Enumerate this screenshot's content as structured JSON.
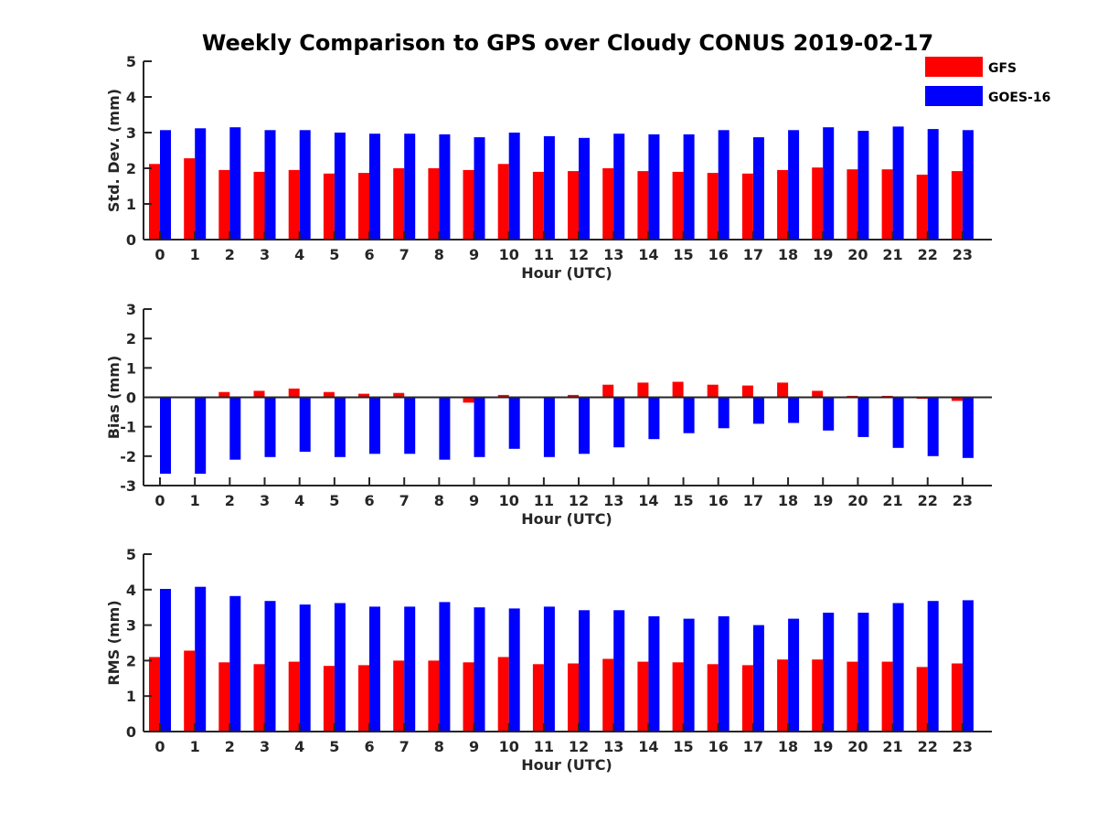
{
  "title": "Weekly Comparison to GPS over Cloudy CONUS 2019-02-17",
  "legend": {
    "placement": "top-right",
    "entries": [
      {
        "label": "GFS",
        "color": "#ff0000"
      },
      {
        "label": "GOES-16",
        "color": "#0000ff"
      }
    ]
  },
  "chart_data": [
    {
      "type": "bar",
      "xlabel": "Hour (UTC)",
      "ylabel": "Std. Dev. (mm)",
      "ylim": [
        0,
        5
      ],
      "yticks": [
        0,
        1,
        2,
        3,
        4,
        5
      ],
      "categories": [
        "0",
        "1",
        "2",
        "3",
        "4",
        "5",
        "6",
        "7",
        "8",
        "9",
        "10",
        "11",
        "12",
        "13",
        "14",
        "15",
        "16",
        "17",
        "18",
        "19",
        "20",
        "21",
        "22",
        "23"
      ],
      "series": [
        {
          "name": "GFS",
          "color": "#ff0000",
          "values": [
            2.12,
            2.28,
            1.95,
            1.9,
            1.95,
            1.85,
            1.87,
            2.0,
            2.0,
            1.95,
            2.12,
            1.9,
            1.92,
            2.0,
            1.92,
            1.9,
            1.87,
            1.85,
            1.95,
            2.02,
            1.97,
            1.97,
            1.82,
            1.92
          ]
        },
        {
          "name": "GOES-16",
          "color": "#0000ff",
          "values": [
            3.07,
            3.12,
            3.15,
            3.07,
            3.07,
            3.0,
            2.97,
            2.97,
            2.95,
            2.87,
            3.0,
            2.9,
            2.85,
            2.97,
            2.95,
            2.95,
            3.07,
            2.87,
            3.07,
            3.15,
            3.05,
            3.17,
            3.1,
            3.07
          ]
        }
      ]
    },
    {
      "type": "bar",
      "xlabel": "Hour (UTC)",
      "ylabel": "Bias (mm)",
      "ylim": [
        -3,
        3
      ],
      "yticks": [
        -3,
        -2,
        -1,
        0,
        1,
        2,
        3
      ],
      "zero_line": true,
      "categories": [
        "0",
        "1",
        "2",
        "3",
        "4",
        "5",
        "6",
        "7",
        "8",
        "9",
        "10",
        "11",
        "12",
        "13",
        "14",
        "15",
        "16",
        "17",
        "18",
        "19",
        "20",
        "21",
        "22",
        "23"
      ],
      "series": [
        {
          "name": "GFS",
          "color": "#ff0000",
          "values": [
            0.0,
            0.02,
            0.18,
            0.22,
            0.3,
            0.18,
            0.12,
            0.15,
            -0.03,
            -0.18,
            0.08,
            0.02,
            0.08,
            0.43,
            0.5,
            0.53,
            0.43,
            0.4,
            0.5,
            0.22,
            0.05,
            0.05,
            -0.05,
            -0.12
          ]
        },
        {
          "name": "GOES-16",
          "color": "#0000ff",
          "values": [
            -2.6,
            -2.6,
            -2.12,
            -2.03,
            -1.85,
            -2.03,
            -1.92,
            -1.92,
            -2.12,
            -2.03,
            -1.75,
            -2.03,
            -1.92,
            -1.7,
            -1.42,
            -1.22,
            -1.05,
            -0.9,
            -0.87,
            -1.13,
            -1.35,
            -1.72,
            -2.0,
            -2.06
          ]
        }
      ]
    },
    {
      "type": "bar",
      "xlabel": "Hour (UTC)",
      "ylabel": "RMS (mm)",
      "ylim": [
        0,
        5
      ],
      "yticks": [
        0,
        1,
        2,
        3,
        4,
        5
      ],
      "categories": [
        "0",
        "1",
        "2",
        "3",
        "4",
        "5",
        "6",
        "7",
        "8",
        "9",
        "10",
        "11",
        "12",
        "13",
        "14",
        "15",
        "16",
        "17",
        "18",
        "19",
        "20",
        "21",
        "22",
        "23"
      ],
      "series": [
        {
          "name": "GFS",
          "color": "#ff0000",
          "values": [
            2.1,
            2.28,
            1.95,
            1.9,
            1.97,
            1.85,
            1.87,
            2.0,
            2.0,
            1.95,
            2.1,
            1.9,
            1.92,
            2.05,
            1.97,
            1.95,
            1.9,
            1.87,
            2.03,
            2.03,
            1.97,
            1.97,
            1.82,
            1.92
          ]
        },
        {
          "name": "GOES-16",
          "color": "#0000ff",
          "values": [
            4.02,
            4.08,
            3.82,
            3.68,
            3.58,
            3.62,
            3.52,
            3.52,
            3.65,
            3.5,
            3.47,
            3.52,
            3.42,
            3.42,
            3.25,
            3.18,
            3.25,
            3.0,
            3.18,
            3.35,
            3.35,
            3.62,
            3.68,
            3.7
          ]
        }
      ]
    }
  ]
}
